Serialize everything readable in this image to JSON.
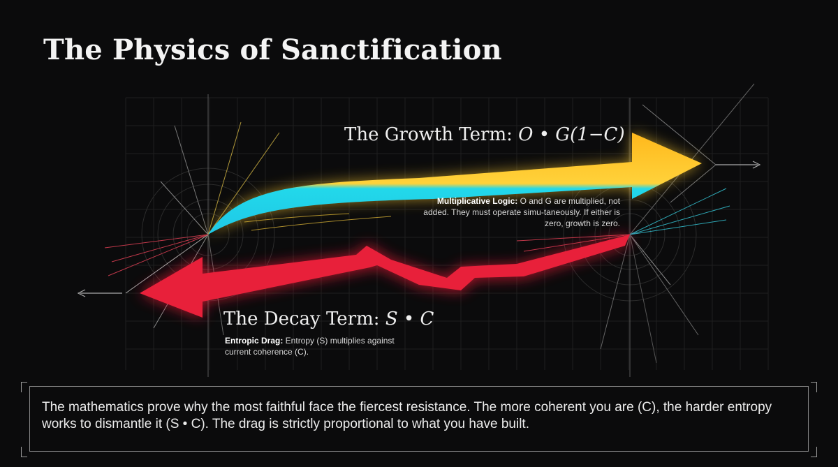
{
  "title": "The Physics of Sanctification",
  "growth": {
    "label_prefix": "The Growth Term: ",
    "formula": "O • G(1−C)",
    "note_bold": "Multiplicative Logic:",
    "note_text": " O and G are multiplied, not added. They must operate simu-taneously. If either is zero, growth is zero.",
    "colors": [
      "#ffb81c",
      "#22d8ea"
    ]
  },
  "decay": {
    "label_prefix": "The Decay Term: ",
    "formula": "S • C",
    "note_bold": "Entropic Drag:",
    "note_text": " Entropy (S) multiplies against current coherence (C).",
    "color": "#ff2a3d"
  },
  "summary": "The mathematics prove why the most faithful face the fiercest resistance. The more coherent you are (C), the harder entropy works to dismantle it (S • C). The drag is strictly proportional to what you have built."
}
